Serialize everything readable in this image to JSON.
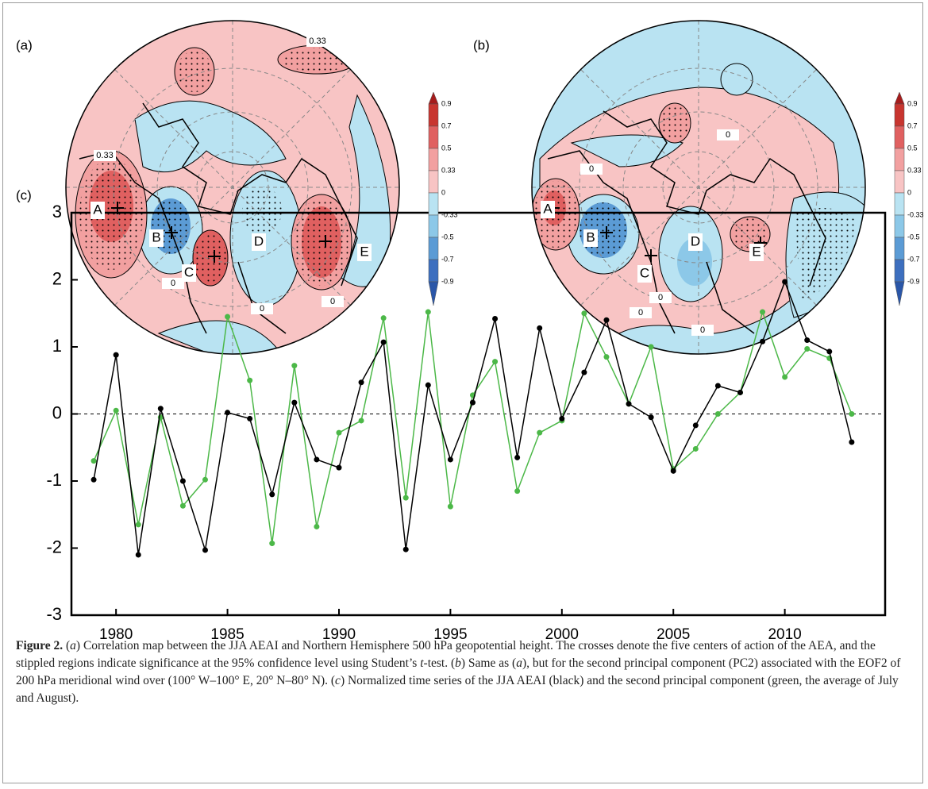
{
  "panels": [
    {
      "label": "(a)",
      "centers": [
        "A",
        "B",
        "C",
        "D",
        "E"
      ],
      "contour_labels": [
        "0.33",
        "0.33",
        "0",
        "0",
        "0"
      ],
      "colorbar_ticks": [
        "0.9",
        "0.7",
        "0.5",
        "0.33",
        "0",
        "-0.33",
        "-0.5",
        "-0.7",
        "-0.9"
      ]
    },
    {
      "label": "(b)",
      "centers": [
        "A",
        "B",
        "C",
        "D",
        "E"
      ],
      "contour_labels": [
        "0",
        "0",
        "0",
        "0",
        "0"
      ],
      "colorbar_ticks": [
        "0.9",
        "0.7",
        "0.5",
        "0.33",
        "0",
        "-0.33",
        "-0.5",
        "-0.7",
        "-0.9"
      ]
    }
  ],
  "chart_data": {
    "type": "line",
    "panel_label": "(c)",
    "x": [
      1979,
      1980,
      1981,
      1982,
      1983,
      1984,
      1985,
      1986,
      1987,
      1988,
      1989,
      1990,
      1991,
      1992,
      1993,
      1994,
      1995,
      1996,
      1997,
      1998,
      1999,
      2000,
      2001,
      2002,
      2003,
      2004,
      2005,
      2006,
      2007,
      2008,
      2009,
      2010,
      2011,
      2012,
      2013
    ],
    "series": [
      {
        "color": "#000000",
        "values": [
          -0.98,
          0.88,
          -2.1,
          0.08,
          -1.0,
          -2.03,
          0.02,
          -0.07,
          -1.2,
          0.17,
          -0.68,
          -0.8,
          0.47,
          1.07,
          -2.02,
          0.43,
          -0.68,
          0.17,
          1.42,
          -0.65,
          1.28,
          -0.07,
          0.62,
          1.4,
          0.15,
          -0.05,
          -0.85,
          -0.17,
          0.42,
          0.32,
          1.08,
          1.97,
          1.1,
          0.93,
          -0.42
        ]
      },
      {
        "color": "#4cb848",
        "values": [
          -0.7,
          0.05,
          -1.65,
          -0.05,
          -1.37,
          -0.98,
          1.45,
          0.5,
          -1.93,
          0.72,
          -1.68,
          -0.28,
          -0.1,
          1.43,
          -1.25,
          1.52,
          -1.38,
          0.28,
          0.78,
          -1.15,
          -0.28,
          -0.1,
          1.5,
          0.85,
          0.15,
          1.0,
          -0.82,
          -0.52,
          0.0,
          0.32,
          1.52,
          0.55,
          0.97,
          0.83,
          0.0
        ]
      }
    ],
    "xlim": [
      1978,
      2014.5
    ],
    "xticks": [
      1980,
      1985,
      1990,
      1995,
      2000,
      2005,
      2010
    ],
    "ylim": [
      -3,
      3
    ],
    "yticks": [
      -3,
      -2,
      -1,
      0,
      1,
      2,
      3
    ],
    "zero_line": true
  },
  "caption": [
    {
      "text": "Figure 2.",
      "style": "bold"
    },
    {
      "text": " ("
    },
    {
      "text": "a",
      "style": "italic"
    },
    {
      "text": ") Correlation map between the JJA AEAI and Northern Hemisphere 500 hPa geopotential height. The crosses denote the five centers of action of the AEA, and the stippled regions indicate significance at the 95% confidence level using Student’s "
    },
    {
      "text": "t",
      "style": "italic"
    },
    {
      "text": "-test. ("
    },
    {
      "text": "b",
      "style": "italic"
    },
    {
      "text": ") Same as ("
    },
    {
      "text": "a",
      "style": "italic"
    },
    {
      "text": "), but for the second principal component (PC2) associated with the EOF2 of 200 hPa meridional wind over (100° W–100° E, 20° N–80° N). ("
    },
    {
      "text": "c",
      "style": "italic"
    },
    {
      "text": ") Normalized time series of the JJA AEAI (black) and the second principal component (green, the average of July and August)."
    }
  ]
}
